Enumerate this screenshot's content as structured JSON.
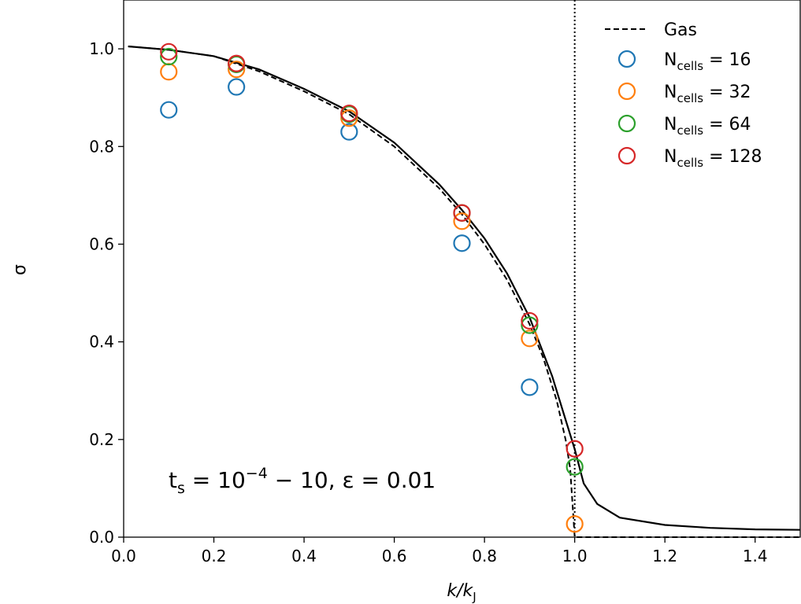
{
  "chart_data": {
    "type": "scatter",
    "xlabel": "k/k",
    "xlabel_sub": "J",
    "ylabel": "σ",
    "xlim": [
      0.0,
      1.5
    ],
    "ylim": [
      0.0,
      1.1
    ],
    "xticks": [
      "0.0",
      "0.2",
      "0.4",
      "0.6",
      "0.8",
      "1.0",
      "1.2",
      "1.4"
    ],
    "yticks": [
      "0.0",
      "0.2",
      "0.4",
      "0.6",
      "0.8",
      "1.0"
    ],
    "annotation": {
      "t": "t",
      "t_sub": "s",
      "eq1": " = 10",
      "exp": "−4",
      "range": " − 10,   ε = 0.01"
    },
    "legend_position": "top-right",
    "gas_curve": {
      "name": "Gas",
      "style": "dashed",
      "x": [
        0.01,
        0.1,
        0.2,
        0.3,
        0.4,
        0.5,
        0.6,
        0.7,
        0.75,
        0.8,
        0.85,
        0.9,
        0.93,
        0.96,
        0.98,
        0.99,
        1.0,
        1.5
      ],
      "y": [
        1.005,
        0.998,
        0.985,
        0.954,
        0.913,
        0.866,
        0.8,
        0.714,
        0.661,
        0.6,
        0.527,
        0.436,
        0.368,
        0.28,
        0.199,
        0.141,
        0.0,
        0.0
      ]
    },
    "model_curve": {
      "name": "",
      "style": "solid",
      "x": [
        0.01,
        0.1,
        0.2,
        0.3,
        0.4,
        0.5,
        0.6,
        0.7,
        0.75,
        0.8,
        0.85,
        0.9,
        0.95,
        0.98,
        1.0,
        1.02,
        1.05,
        1.1,
        1.2,
        1.3,
        1.4,
        1.5
      ],
      "y": [
        1.005,
        0.998,
        0.985,
        0.958,
        0.918,
        0.872,
        0.808,
        0.722,
        0.67,
        0.612,
        0.54,
        0.45,
        0.33,
        0.24,
        0.18,
        0.11,
        0.068,
        0.04,
        0.025,
        0.019,
        0.016,
        0.015
      ]
    },
    "vline": {
      "x": 1.0,
      "style": "dotted"
    },
    "series": [
      {
        "name": "N",
        "sub": "cells",
        "value": " = 16",
        "color": "#1f77b4",
        "x": [
          0.1,
          0.25,
          0.5,
          0.75,
          0.9
        ],
        "y": [
          0.875,
          0.922,
          0.83,
          0.602,
          0.307
        ]
      },
      {
        "name": "N",
        "sub": "cells",
        "value": " = 32",
        "color": "#ff7f0e",
        "x": [
          0.1,
          0.25,
          0.5,
          0.75,
          0.9,
          1.0
        ],
        "y": [
          0.953,
          0.958,
          0.858,
          0.647,
          0.407,
          0.027
        ]
      },
      {
        "name": "N",
        "sub": "cells",
        "value": " = 64",
        "color": "#2ca02c",
        "x": [
          0.1,
          0.25,
          0.5,
          0.75,
          0.9,
          1.0
        ],
        "y": [
          0.984,
          0.968,
          0.866,
          0.664,
          0.434,
          0.144
        ]
      },
      {
        "name": "N",
        "sub": "cells",
        "value": " = 128",
        "color": "#d62728",
        "x": [
          0.1,
          0.25,
          0.5,
          0.75,
          0.9,
          1.0
        ],
        "y": [
          0.994,
          0.97,
          0.868,
          0.664,
          0.443,
          0.181
        ]
      }
    ]
  }
}
